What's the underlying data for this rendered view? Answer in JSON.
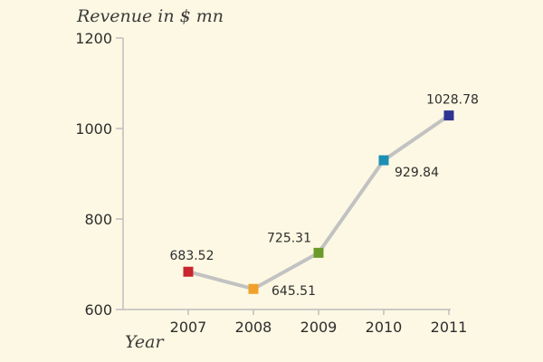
{
  "chart_data": {
    "type": "line",
    "ylabel": "Revenue in $ mn",
    "xlabel": "Year",
    "categories": [
      "2007",
      "2008",
      "2009",
      "2010",
      "2011"
    ],
    "series": [
      {
        "values": [
          683.52,
          645.51,
          725.31,
          929.84,
          1028.78
        ],
        "value_labels": [
          "683.52",
          "645.51",
          "725.31",
          "929.84",
          "1028.78"
        ],
        "label_placement": [
          "above",
          "right",
          "above-left",
          "below-right",
          "above"
        ],
        "point_colors": [
          "#c8272d",
          "#f0a129",
          "#6a9a2a",
          "#1d8fb4",
          "#2e3491"
        ]
      }
    ],
    "ylim": [
      600,
      1200
    ],
    "yticks": [
      600,
      800,
      1000,
      1200
    ],
    "ytick_labels": [
      "600",
      "800",
      "1000",
      "1200"
    ],
    "line_color": "#c2c2c2",
    "grid": false,
    "legend": "none"
  }
}
